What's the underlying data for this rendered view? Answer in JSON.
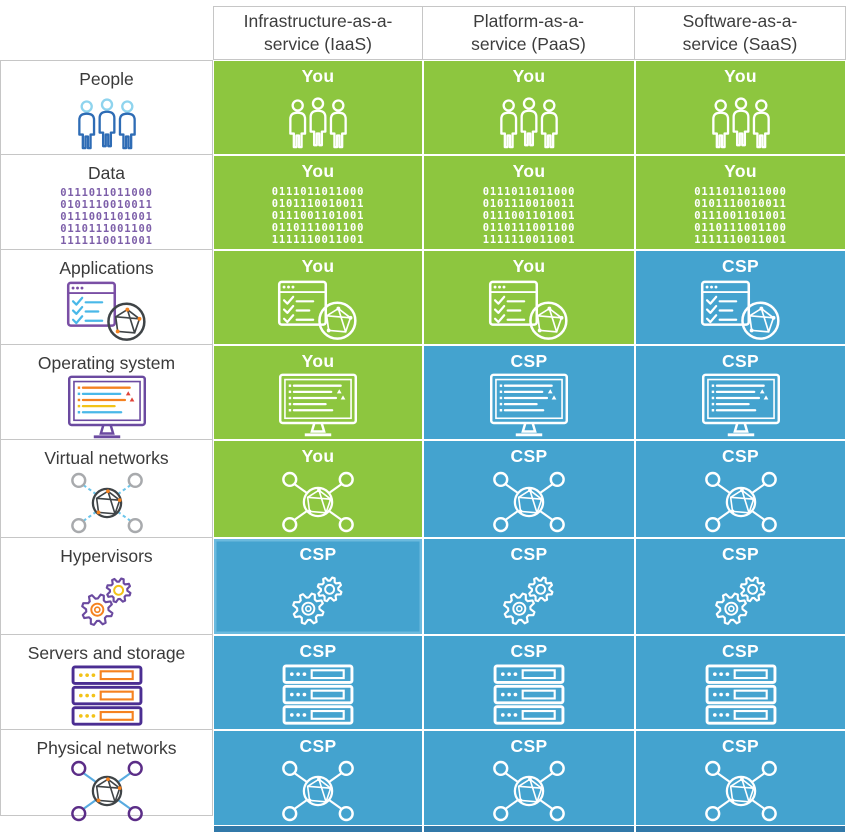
{
  "table": {
    "columns": [
      {
        "id": "iaas",
        "label": "Infrastructure-as-a-\nservice (IaaS)"
      },
      {
        "id": "paas",
        "label": "Platform-as-a-\nservice (PaaS)"
      },
      {
        "id": "saas",
        "label": "Software-as-a-\nservice (SaaS)"
      }
    ],
    "rows": [
      {
        "id": "people",
        "label": "People",
        "icon": "people",
        "cells": [
          "You",
          "You",
          "You"
        ]
      },
      {
        "id": "data",
        "label": "Data",
        "icon": "data",
        "cells": [
          "You",
          "You",
          "You"
        ]
      },
      {
        "id": "applications",
        "label": "Applications",
        "icon": "applications",
        "cells": [
          "You",
          "You",
          "CSP"
        ]
      },
      {
        "id": "operating-system",
        "label": "Operating system",
        "icon": "os",
        "cells": [
          "You",
          "CSP",
          "CSP"
        ]
      },
      {
        "id": "virtual-networks",
        "label": "Virtual networks",
        "icon": "virtual-network",
        "cells": [
          "You",
          "CSP",
          "CSP"
        ]
      },
      {
        "id": "hypervisors",
        "label": "Hypervisors",
        "icon": "hypervisors",
        "cells": [
          "CSP",
          "CSP",
          "CSP"
        ]
      },
      {
        "id": "servers-storage",
        "label": "Servers and storage",
        "icon": "servers",
        "cells": [
          "CSP",
          "CSP",
          "CSP"
        ]
      },
      {
        "id": "physical-networks",
        "label": "Physical networks",
        "icon": "physical-network",
        "cells": [
          "CSP",
          "CSP",
          "CSP"
        ]
      }
    ],
    "owner_colors": {
      "You": "#8dc63f",
      "CSP": "#44a3cf"
    }
  },
  "binary_lines": [
    "0111011011000",
    "0101110010011",
    "0111001101001",
    "0110111001100",
    "1111110011001"
  ],
  "colors": {
    "cell_green": "#8dc63f",
    "cell_blue": "#44a3cf",
    "bottom_strip": "#3179a9",
    "grid_border": "#c6c6c6",
    "text_dark": "#3a3a3a",
    "icon_white": "#ffffff",
    "icon_palette": {
      "person_head": "#8fd4ee",
      "person_body": "#2e6cb5",
      "binary": "#7d5fa9",
      "window": "#7a4fa5",
      "accent_cyan": "#49b8e8",
      "globe": "#3f4447",
      "node_orange": "#f58220",
      "monitor": "#6b4aa0",
      "line_orange": "#f58220",
      "line_blue": "#49b8e8",
      "line_yellow": "#f2c318",
      "warn_red": "#e04438",
      "net_circle": "#a8aaad",
      "net_line": "#6cc5ea",
      "gear": "#6b4aa0",
      "gear_center_1": "#f58220",
      "gear_center_2": "#f2c318",
      "server_box": "#4b2e92",
      "server_dot": "#f2c318",
      "server_panel": "#f58220",
      "pnet_circle": "#5b2d87",
      "pnet_line": "#58abe0"
    }
  }
}
